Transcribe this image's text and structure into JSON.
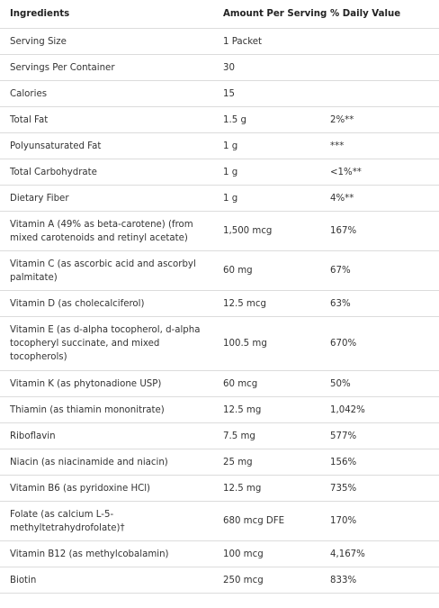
{
  "table": {
    "headers": [
      "Ingredients",
      "Amount Per Serving",
      "% Daily Value"
    ],
    "rows": [
      {
        "ingredient": "Serving Size",
        "amount": "1 Packet",
        "dv": "",
        "lines": 1
      },
      {
        "ingredient": "Servings Per Container",
        "amount": "30",
        "dv": "",
        "lines": 1
      },
      {
        "ingredient": "Calories",
        "amount": "15",
        "dv": "",
        "lines": 1
      },
      {
        "ingredient": "Total Fat",
        "amount": "1.5 g",
        "dv": "2%**",
        "lines": 1
      },
      {
        "ingredient": "Polyunsaturated Fat",
        "amount": "1 g",
        "dv": "***",
        "lines": 1
      },
      {
        "ingredient": "Total Carbohydrate",
        "amount": "1 g",
        "dv": "<1%**",
        "lines": 1
      },
      {
        "ingredient": "Dietary Fiber",
        "amount": "1 g",
        "dv": "4%**",
        "lines": 1
      },
      {
        "ingredient": "Vitamin A (49% as beta-carotene) (from mixed carotenoids and retinyl acetate)",
        "amount": "1,500 mcg",
        "dv": "167%",
        "lines": 2
      },
      {
        "ingredient": "Vitamin C (as ascorbic acid and ascorbyl palmitate)",
        "amount": "60 mg",
        "dv": "67%",
        "lines": 2
      },
      {
        "ingredient": "Vitamin D (as cholecalciferol)",
        "amount": "12.5 mcg",
        "dv": "63%",
        "lines": 1
      },
      {
        "ingredient": "Vitamin E (as d-alpha tocopherol, d-alpha tocopheryl succinate, and mixed tocopherols)",
        "amount": "100.5 mg",
        "dv": "670%",
        "lines": 3
      },
      {
        "ingredient": "Vitamin K (as phytonadione USP)",
        "amount": "60 mcg",
        "dv": "50%",
        "lines": 1
      },
      {
        "ingredient": "Thiamin (as thiamin mononitrate)",
        "amount": "12.5 mg",
        "dv": "1,042%",
        "lines": 1
      },
      {
        "ingredient": "Riboflavin",
        "amount": "7.5 mg",
        "dv": "577%",
        "lines": 1
      },
      {
        "ingredient": "Niacin (as niacinamide and niacin)",
        "amount": "25 mg",
        "dv": "156%",
        "lines": 1
      },
      {
        "ingredient": "Vitamin B6 (as pyridoxine HCl)",
        "amount": "12.5 mg",
        "dv": "735%",
        "lines": 1
      },
      {
        "ingredient": "Folate (as calcium L-5-methyltetrahydrofolate)†",
        "amount": "680 mcg DFE",
        "dv": "170%",
        "lines": 2
      },
      {
        "ingredient": "Vitamin B12 (as methylcobalamin)",
        "amount": "100 mcg",
        "dv": "4,167%",
        "lines": 1
      },
      {
        "ingredient": "Biotin",
        "amount": "250 mcg",
        "dv": "833%",
        "lines": 1
      }
    ]
  }
}
